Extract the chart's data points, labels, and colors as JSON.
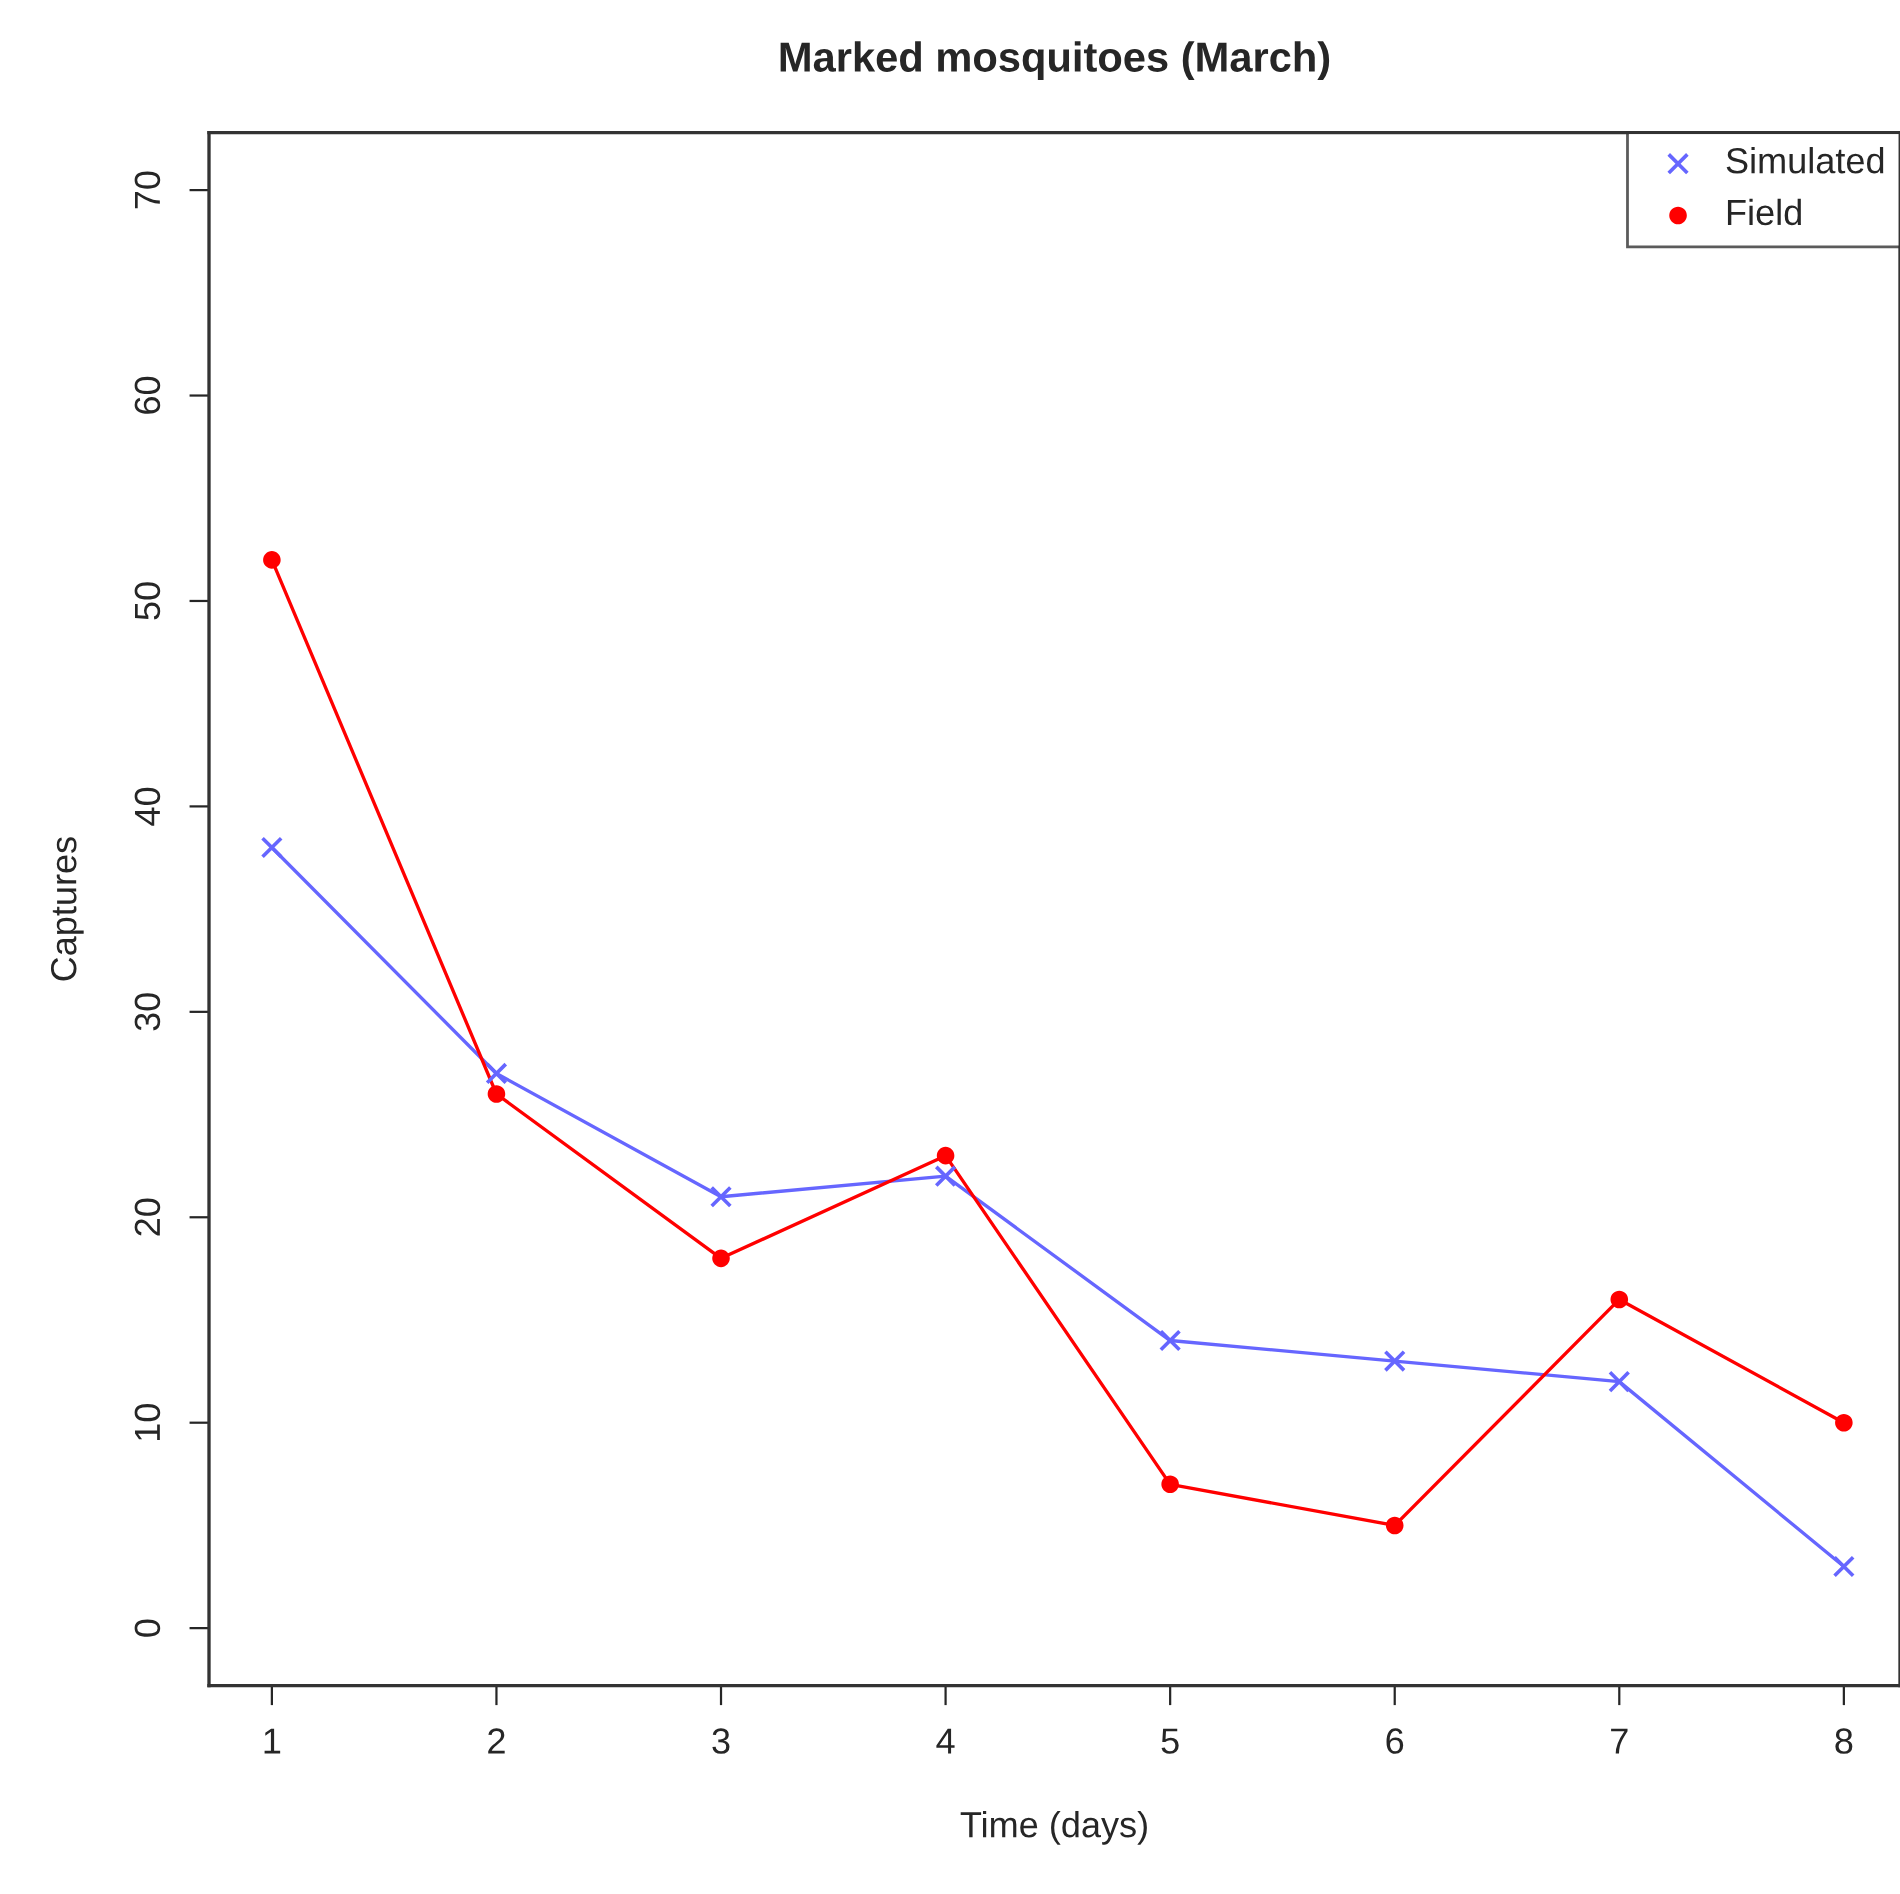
{
  "chart_data": {
    "type": "line",
    "title": "Marked mosquitoes (March)",
    "xlabel": "Time (days)",
    "ylabel": "Captures",
    "x": [
      1,
      2,
      3,
      4,
      5,
      6,
      7,
      8
    ],
    "series": [
      {
        "name": "Simulated",
        "color": "#6666ff",
        "marker": "cross",
        "values": [
          38,
          27,
          21,
          22,
          14,
          13,
          12,
          3
        ]
      },
      {
        "name": "Field",
        "color": "#ff0000",
        "marker": "circle",
        "values": [
          52,
          26,
          18,
          23,
          7,
          5,
          16,
          10
        ]
      }
    ],
    "xlim": [
      0.72,
      8.25
    ],
    "xticks": [
      1,
      2,
      3,
      4,
      5,
      6,
      7,
      8
    ],
    "ylim": [
      -2.8,
      72.8
    ],
    "yticks": [
      0,
      10,
      20,
      30,
      40,
      50,
      60,
      70
    ],
    "grid": false,
    "legend": "top right",
    "line_style": "solid"
  }
}
